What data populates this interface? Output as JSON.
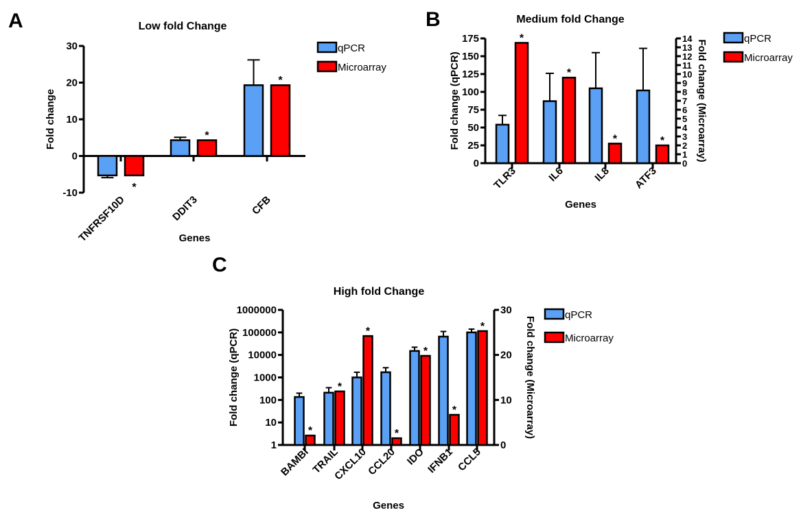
{
  "colors": {
    "qpcr": "#5aa0f5",
    "microarray": "#ff0000",
    "axis": "#000000"
  },
  "chart_data": [
    {
      "panel": "A",
      "type": "bar",
      "title": "Low fold Change",
      "xlabel": "Genes",
      "ylabel": "Fold change",
      "ylim": [
        -10,
        30
      ],
      "yticks": [
        -10,
        0,
        10,
        20,
        30
      ],
      "legend": {
        "placement": "top-right",
        "entries": [
          "qPCR",
          "Microarray"
        ]
      },
      "categories": [
        "TNFRSF10D",
        "DDIT3",
        "CFB"
      ],
      "series": [
        {
          "name": "qPCR",
          "axis": "left",
          "values": [
            -5.3,
            4.3,
            19.3
          ],
          "error_upper": [
            -5.9,
            5.1,
            26.2
          ]
        },
        {
          "name": "Microarray",
          "axis": "left",
          "values": [
            -5.3,
            4.3,
            19.3
          ],
          "significant": [
            true,
            true,
            true
          ]
        }
      ],
      "annotation": "*"
    },
    {
      "panel": "B",
      "type": "bar",
      "title": "Medium fold Change",
      "xlabel": "Genes",
      "ylabel": "Fold change (qPCR)",
      "ylabel_right": "Fold change (Microarray)",
      "ylim": [
        0,
        175
      ],
      "ylim_right": [
        0,
        14
      ],
      "yticks": [
        0,
        25,
        50,
        75,
        100,
        125,
        150,
        175
      ],
      "yticks_right": [
        0,
        1,
        2,
        3,
        4,
        5,
        6,
        7,
        8,
        9,
        10,
        11,
        12,
        13,
        14
      ],
      "legend": {
        "placement": "top-right",
        "entries": [
          "qPCR",
          "Microarray"
        ]
      },
      "categories": [
        "TLR3",
        "IL6",
        "IL8",
        "ATF3"
      ],
      "series": [
        {
          "name": "qPCR",
          "axis": "left",
          "values": [
            54,
            87,
            105,
            102
          ],
          "error_upper": [
            67,
            126,
            155,
            161
          ]
        },
        {
          "name": "Microarray",
          "axis": "right",
          "values": [
            13.5,
            9.6,
            2.2,
            2.0
          ],
          "significant": [
            true,
            true,
            true,
            true
          ]
        }
      ],
      "annotation": "*"
    },
    {
      "panel": "C",
      "type": "bar",
      "title": "High fold Change",
      "xlabel": "Genes",
      "ylabel": "Fold change (qPCR)",
      "ylabel_right": "Fold change (Microarray)",
      "yscale": "log",
      "ylim": [
        1,
        1000000
      ],
      "ylim_right": [
        0,
        30
      ],
      "yticks": [
        "1",
        "10",
        "100",
        "1000",
        "10000",
        "100000",
        "1000000"
      ],
      "yticks_right": [
        0,
        10,
        20,
        30
      ],
      "legend": {
        "placement": "top-right",
        "entries": [
          "qPCR",
          "Microarray"
        ]
      },
      "categories": [
        "BAMBI",
        "TRAIL",
        "CXCL10",
        "CCL20",
        "IDO",
        "IFNB1",
        "CCL5"
      ],
      "series": [
        {
          "name": "qPCR",
          "axis": "left",
          "values": [
            135,
            210,
            1000,
            1700,
            15000,
            65000,
            100000
          ],
          "error_upper": [
            200,
            350,
            1700,
            2700,
            22000,
            110000,
            140000
          ]
        },
        {
          "name": "Microarray",
          "axis": "right",
          "values": [
            2.1,
            11.9,
            24.2,
            1.5,
            19.8,
            6.7,
            25.3
          ],
          "significant": [
            true,
            true,
            true,
            true,
            true,
            true,
            true
          ]
        }
      ],
      "annotation": "*"
    }
  ]
}
